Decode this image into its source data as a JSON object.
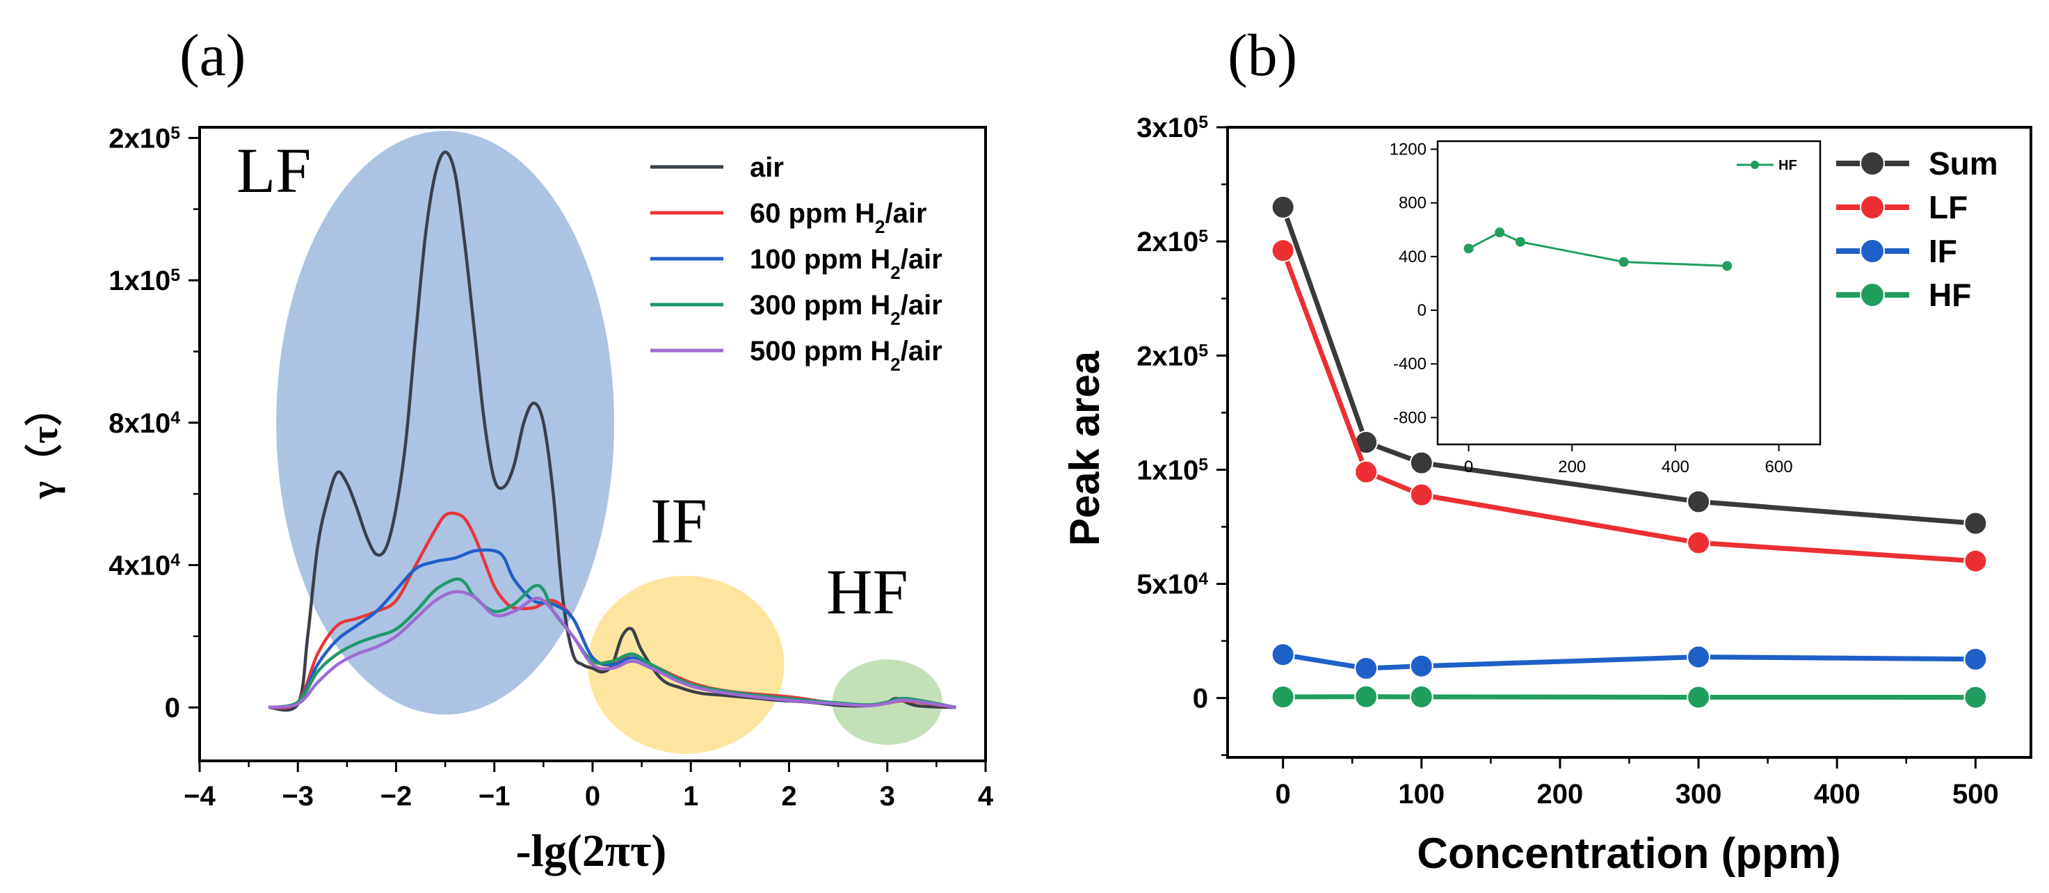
{
  "chart_data": [
    {
      "panel_label": "(a)",
      "type": "line",
      "xlabel": "-lg(2πτ)",
      "ylabel": "γ（τ）",
      "xlim": [
        -4,
        4
      ],
      "ylim": [
        -15000,
        163000
      ],
      "xticks": [
        {
          "value": -4,
          "label": "−4"
        },
        {
          "value": -3,
          "label": "−3"
        },
        {
          "value": -2,
          "label": "−2"
        },
        {
          "value": -1,
          "label": "−1"
        },
        {
          "value": 0,
          "label": "0"
        },
        {
          "value": 1,
          "label": "1"
        },
        {
          "value": 2,
          "label": "2"
        },
        {
          "value": 3,
          "label": "3"
        },
        {
          "value": 4,
          "label": "4"
        }
      ],
      "yticks": [
        {
          "value": 0,
          "base": "0",
          "exp": ""
        },
        {
          "value": 40000,
          "base": "4x10",
          "exp": "4"
        },
        {
          "value": 80000,
          "base": "8x10",
          "exp": "4"
        },
        {
          "value": 120000,
          "base": "1x10",
          "exp": "5"
        },
        {
          "value": 160000,
          "base": "2x10",
          "exp": "5"
        }
      ],
      "regions": [
        {
          "label": "LF",
          "cx": -1.5,
          "cy": 80000,
          "rx": 1.72,
          "ry": 82000,
          "color": "#9bb6de"
        },
        {
          "label": "IF",
          "cx": 0.95,
          "cy": 12000,
          "rx": 1.0,
          "ry": 25000,
          "color": "#fbe08a"
        },
        {
          "label": "HF",
          "cx": 3.0,
          "cy": 1500,
          "rx": 0.56,
          "ry": 12000,
          "color": "#b7d9a8"
        }
      ],
      "series": [
        {
          "name": "air",
          "label": "air",
          "sub": "",
          "tail": "",
          "color": "#3a3f4a",
          "x": [
            -3.3,
            -3.0,
            -2.9,
            -2.8,
            -2.7,
            -2.6,
            -2.5,
            -2.4,
            -2.3,
            -2.2,
            -2.1,
            -2.0,
            -1.9,
            -1.8,
            -1.7,
            -1.6,
            -1.5,
            -1.4,
            -1.3,
            -1.2,
            -1.1,
            -1.0,
            -0.9,
            -0.8,
            -0.7,
            -0.6,
            -0.5,
            -0.4,
            -0.3,
            -0.2,
            -0.1,
            0.0,
            0.1,
            0.2,
            0.3,
            0.4,
            0.5,
            0.7,
            0.9,
            1.1,
            1.3,
            1.5,
            1.7,
            1.9,
            2.2,
            2.5,
            2.8,
            3.0,
            3.1,
            3.3,
            3.7
          ],
          "y": [
            0,
            1000,
            20000,
            45000,
            58000,
            66000,
            63000,
            56000,
            48000,
            43000,
            45000,
            56000,
            75000,
            105000,
            133000,
            150000,
            156000,
            150000,
            130000,
            105000,
            80000,
            64000,
            62000,
            68000,
            80000,
            85500,
            80000,
            60000,
            30000,
            15000,
            12000,
            11000,
            10000,
            12000,
            20000,
            22000,
            16000,
            8000,
            5500,
            4000,
            3500,
            3000,
            2500,
            2000,
            1500,
            600,
            500,
            1500,
            2500,
            500,
            0
          ]
        },
        {
          "name": "60 ppm",
          "label": "60 ppm H",
          "sub": "2",
          "tail": "/air",
          "color": "#e8363a",
          "x": [
            -3.3,
            -3.0,
            -2.8,
            -2.6,
            -2.4,
            -2.2,
            -2.0,
            -1.8,
            -1.6,
            -1.5,
            -1.4,
            -1.3,
            -1.2,
            -1.1,
            -1.0,
            -0.9,
            -0.8,
            -0.6,
            -0.4,
            -0.2,
            0.0,
            0.2,
            0.4,
            0.6,
            1.0,
            1.4,
            2.0,
            2.4,
            2.8,
            3.0,
            3.2,
            3.7
          ],
          "y": [
            0,
            1500,
            15000,
            23000,
            25000,
            27000,
            30000,
            40000,
            50000,
            54000,
            54500,
            53000,
            48000,
            41000,
            34000,
            30000,
            28000,
            28000,
            30000,
            25000,
            14000,
            12000,
            15000,
            12000,
            7000,
            4500,
            3000,
            1500,
            700,
            1200,
            1800,
            0
          ]
        },
        {
          "name": "100 ppm",
          "label": "100 ppm H",
          "sub": "2",
          "tail": "/air",
          "color": "#1f5fc8",
          "x": [
            -3.3,
            -3.0,
            -2.8,
            -2.6,
            -2.4,
            -2.2,
            -2.0,
            -1.8,
            -1.6,
            -1.4,
            -1.2,
            -1.0,
            -0.9,
            -0.8,
            -0.6,
            -0.4,
            -0.2,
            0.0,
            0.2,
            0.4,
            0.6,
            1.0,
            1.5,
            2.0,
            2.4,
            2.8,
            3.0,
            3.2,
            3.7
          ],
          "y": [
            0,
            1500,
            12000,
            19000,
            23000,
            27000,
            33000,
            39000,
            41000,
            42000,
            44000,
            44000,
            42000,
            36000,
            30000,
            29000,
            25000,
            14000,
            12000,
            14000,
            12000,
            6500,
            4000,
            2500,
            1500,
            700,
            1500,
            2500,
            0
          ]
        },
        {
          "name": "300 ppm",
          "label": "300 ppm H",
          "sub": "2",
          "tail": "/air",
          "color": "#1f9a6a",
          "x": [
            -3.3,
            -3.0,
            -2.8,
            -2.6,
            -2.4,
            -2.2,
            -2.0,
            -1.8,
            -1.6,
            -1.4,
            -1.3,
            -1.2,
            -1.0,
            -0.8,
            -0.6,
            -0.5,
            -0.4,
            -0.2,
            0.0,
            0.2,
            0.4,
            0.6,
            1.0,
            1.5,
            2.0,
            2.4,
            2.8,
            3.0,
            3.2,
            3.7
          ],
          "y": [
            0,
            1500,
            10000,
            15000,
            18000,
            20000,
            22000,
            27000,
            33000,
            36000,
            35000,
            31000,
            27000,
            29000,
            34000,
            33000,
            27000,
            20000,
            13000,
            13000,
            15000,
            12000,
            6500,
            4000,
            2500,
            1500,
            700,
            1500,
            2500,
            0
          ]
        },
        {
          "name": "500 ppm",
          "label": "500 ppm H",
          "sub": "2",
          "tail": "/air",
          "color": "#9e6ad3",
          "x": [
            -3.3,
            -3.0,
            -2.8,
            -2.6,
            -2.4,
            -2.2,
            -2.0,
            -1.8,
            -1.6,
            -1.4,
            -1.2,
            -1.0,
            -0.8,
            -0.6,
            -0.5,
            -0.4,
            -0.2,
            0.0,
            0.2,
            0.4,
            0.6,
            1.0,
            1.5,
            2.0,
            2.4,
            2.8,
            3.0,
            3.2,
            3.7
          ],
          "y": [
            0,
            1000,
            7000,
            12000,
            15000,
            17000,
            20000,
            25000,
            30000,
            32500,
            31000,
            26000,
            27000,
            30500,
            30000,
            27000,
            20000,
            12000,
            11000,
            13000,
            11000,
            6000,
            3500,
            2000,
            1200,
            500,
            1200,
            2000,
            0
          ]
        }
      ]
    },
    {
      "panel_label": "(b)",
      "type": "line",
      "xlabel": "Concentration (ppm)",
      "ylabel": "Peak area",
      "xlim": [
        -40,
        540
      ],
      "ylim": [
        -26000,
        250000
      ],
      "xticks": [
        0,
        100,
        200,
        300,
        400,
        500
      ],
      "yticks": [
        {
          "value": 0,
          "base": "0",
          "exp": ""
        },
        {
          "value": 50000,
          "base": "5x10",
          "exp": "4"
        },
        {
          "value": 100000,
          "base": "1x10",
          "exp": "5"
        },
        {
          "value": 150000,
          "base": "2x10",
          "exp": "5"
        },
        {
          "value": 200000,
          "base": "2x10",
          "exp": "5"
        },
        {
          "value": 250000,
          "base": "3x10",
          "exp": "5"
        }
      ],
      "x": [
        0,
        60,
        100,
        300,
        500
      ],
      "series": [
        {
          "name": "Sum",
          "color": "#3a3a3a",
          "values": [
            215000,
            112000,
            103000,
            86000,
            76500
          ]
        },
        {
          "name": "LF",
          "color": "#ec2f33",
          "values": [
            196000,
            99000,
            89000,
            68000,
            60000
          ]
        },
        {
          "name": "IF",
          "color": "#1e60c8",
          "values": [
            19000,
            13000,
            14000,
            18000,
            17000
          ]
        },
        {
          "name": "HF",
          "color": "#1f9e5e",
          "values": [
            460,
            580,
            510,
            360,
            330
          ]
        }
      ],
      "inset": {
        "xlim": [
          -60,
          680
        ],
        "ylim": [
          -1000,
          1260
        ],
        "xticks": [
          0,
          200,
          400,
          600
        ],
        "yticks": [
          {
            "value": 1200,
            "label": "1200"
          },
          {
            "value": 800,
            "label": "800"
          },
          {
            "value": 400,
            "label": "400"
          },
          {
            "value": 0,
            "label": "0"
          },
          {
            "value": -400,
            "label": "-400"
          },
          {
            "value": -800,
            "label": "-800"
          }
        ],
        "series": {
          "name": "HF",
          "color": "#1f9e5e",
          "x": [
            0,
            60,
            100,
            300,
            500
          ],
          "values": [
            460,
            580,
            510,
            360,
            330
          ]
        }
      }
    }
  ],
  "annotations": {
    "lf": "LF",
    "if": "IF",
    "hf": "HF"
  }
}
